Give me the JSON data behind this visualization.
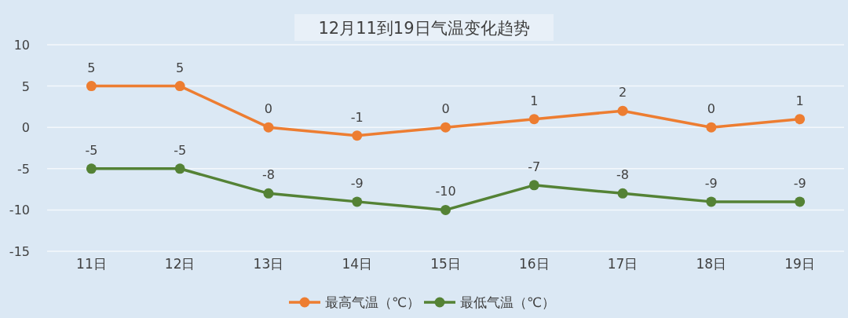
{
  "chart_data": {
    "type": "line",
    "title": "12月11到19日气温变化趋势",
    "categories": [
      "11日",
      "12日",
      "13日",
      "14日",
      "15日",
      "16日",
      "17日",
      "18日",
      "19日"
    ],
    "series": [
      {
        "name": "最高气温（℃）",
        "color": "#ed7d31",
        "values": [
          5,
          5,
          0,
          -1,
          0,
          1,
          2,
          0,
          1
        ]
      },
      {
        "name": "最低气温（℃）",
        "color": "#548235",
        "values": [
          -5,
          -5,
          -8,
          -9,
          -10,
          -7,
          -8,
          -9,
          -9
        ]
      }
    ],
    "ylim": [
      -15,
      10
    ],
    "yticks": [
      -15,
      -10,
      -5,
      0,
      5,
      10
    ],
    "grid": "y",
    "data_labels": true,
    "marker": "circle",
    "line_style": "solid",
    "legend": "bottom"
  }
}
